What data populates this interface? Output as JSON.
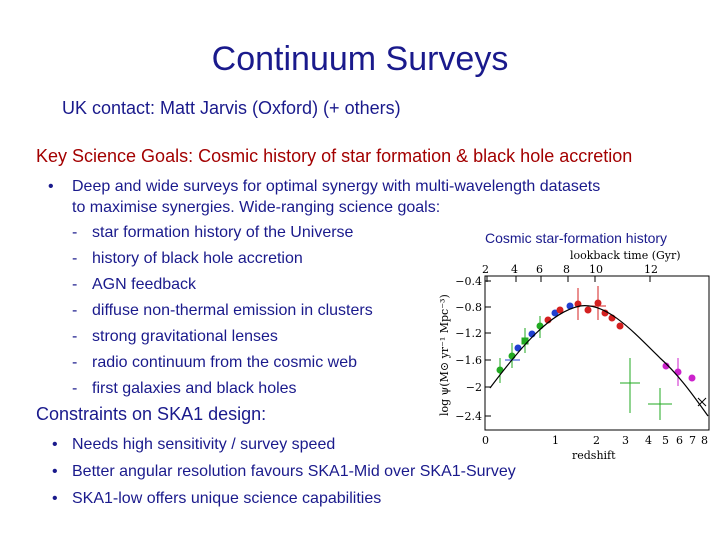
{
  "title": "Continuum Surveys",
  "contact": "UK contact: Matt Jarvis (Oxford)  (+ others)",
  "key_goals_heading": "Key Science Goals: Cosmic history of star formation & black hole accretion",
  "main_bullet": {
    "marker": "•",
    "line1": "Deep and wide surveys for optimal synergy with multi-wavelength datasets",
    "line2": "to maximise synergies. Wide-ranging science goals:"
  },
  "sub_items": [
    {
      "marker": "-",
      "text": "star formation history of the Universe"
    },
    {
      "marker": "-",
      "text": "history of black hole accretion"
    },
    {
      "marker": "-",
      "text": "AGN feedback"
    },
    {
      "marker": "-",
      "text": "diffuse non-thermal emission in clusters"
    },
    {
      "marker": "-",
      "text": "strong gravitational lenses"
    },
    {
      "marker": "-",
      "text": "radio continuum from the cosmic web"
    },
    {
      "marker": "-",
      "text": "first galaxies and black holes"
    }
  ],
  "constraints_heading": "Constraints on SKA1 design:",
  "constraints": [
    {
      "marker": "•",
      "text": "Needs high sensitivity / survey speed"
    },
    {
      "marker": "•",
      "text": "Better angular resolution favours SKA1-Mid over SKA1-Survey"
    },
    {
      "marker": "•",
      "text": "SKA1-low offers unique science capabilities"
    }
  ],
  "figure": {
    "caption": "Cosmic star-formation history",
    "top_axis_label": "lookback time (Gyr)",
    "top_ticks": [
      "2",
      "4",
      "6",
      "8",
      "10",
      "12"
    ],
    "bottom_axis_label": "redshift",
    "bottom_ticks": [
      "0",
      "1",
      "2",
      "3",
      "4",
      "5",
      "6",
      "7",
      "8"
    ],
    "y_axis_label": "log ψ(M⊙ yr⁻¹ Mpc⁻³)",
    "y_ticks": [
      "−0.4",
      "−0.8",
      "−1.2",
      "−1.6",
      "−2",
      "−2.4"
    ],
    "colors": {
      "red": "#d42020",
      "green": "#22aa22",
      "blue": "#2040d0",
      "magenta": "#cc22cc",
      "black": "#000000"
    }
  }
}
